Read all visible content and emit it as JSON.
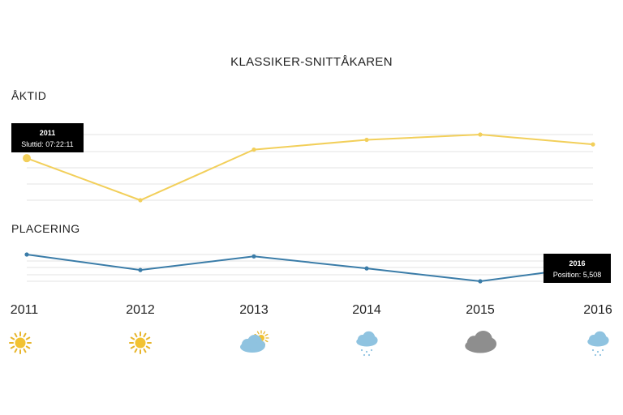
{
  "title": "KLASSIKER-SNITTÅKAREN",
  "chart_data": [
    {
      "type": "line",
      "section_label": "ÅKTID",
      "x": [
        "2011",
        "2012",
        "2013",
        "2014",
        "2015",
        "2016"
      ],
      "relative_levels": [
        0.64,
        0.0,
        0.77,
        0.92,
        1.0,
        0.85
      ],
      "color": "#f2cf5a",
      "grid": true,
      "tooltip": {
        "year": "2011",
        "text": "Sluttid: 07:22:11"
      }
    },
    {
      "type": "line",
      "section_label": "PLACERING",
      "x": [
        "2011",
        "2012",
        "2013",
        "2014",
        "2015",
        "2016"
      ],
      "relative_levels": [
        1.0,
        0.42,
        0.93,
        0.48,
        0.0,
        0.56
      ],
      "values_known": {
        "2016": 5508
      },
      "color": "#3a7ca8",
      "grid": true,
      "tooltip": {
        "year": "2016",
        "text": "Position: 5,508"
      }
    }
  ],
  "years": [
    "2011",
    "2012",
    "2013",
    "2014",
    "2015",
    "2016"
  ],
  "weather": [
    {
      "year": "2011",
      "icon": "sun-icon"
    },
    {
      "year": "2012",
      "icon": "sun-icon"
    },
    {
      "year": "2013",
      "icon": "partly-cloudy-icon"
    },
    {
      "year": "2014",
      "icon": "snow-cloud-icon"
    },
    {
      "year": "2015",
      "icon": "dark-cloud-icon"
    },
    {
      "year": "2016",
      "icon": "snow-cloud-icon"
    }
  ]
}
